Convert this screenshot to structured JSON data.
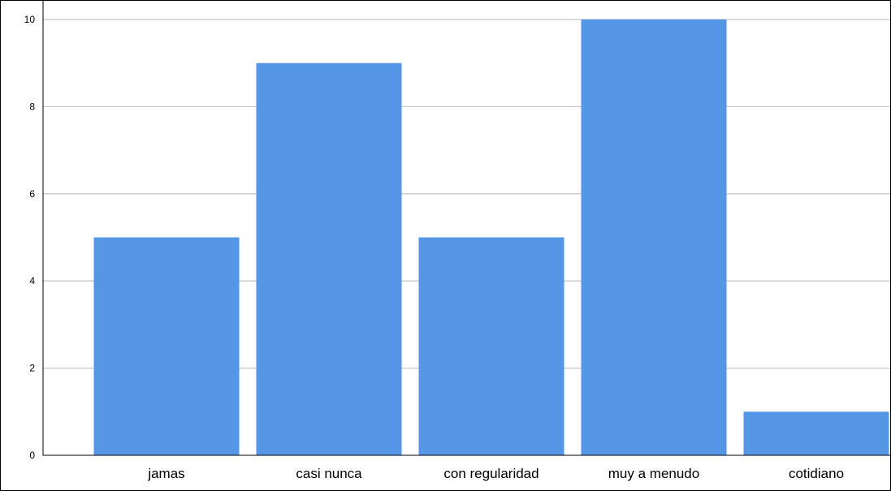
{
  "chart_data": {
    "type": "bar",
    "categories": [
      "jamas",
      "casi nunca",
      "con regularidad",
      "muy a menudo",
      "cotidiano"
    ],
    "values": [
      5,
      9,
      5,
      10,
      1
    ],
    "ylim": [
      0,
      10
    ],
    "yticks": [
      0,
      2,
      4,
      6,
      8,
      10
    ],
    "title": "",
    "xlabel": "",
    "ylabel": "",
    "grid": true,
    "bar_color": "#5596E6",
    "grid_color": "#C8C8C8",
    "axis_color": "#000000"
  }
}
